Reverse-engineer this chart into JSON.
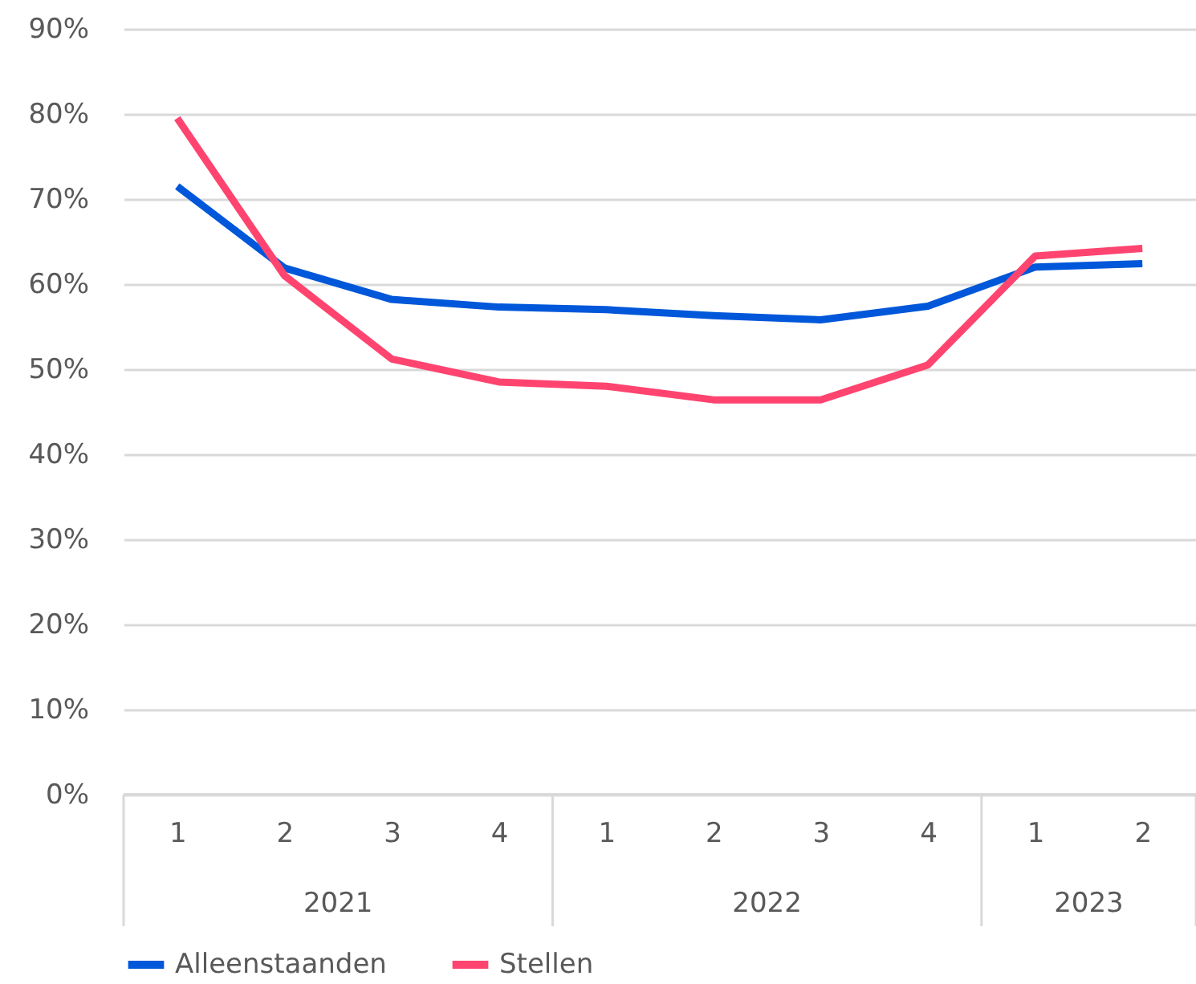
{
  "chart_data": {
    "type": "line",
    "categories": [
      "1",
      "2",
      "3",
      "4",
      "1",
      "2",
      "3",
      "4",
      "1",
      "2"
    ],
    "series": [
      {
        "name": "Alleenstaanden",
        "color": "#0057d9",
        "values": [
          71.5,
          61.9,
          58.2,
          57.3,
          57.0,
          56.3,
          55.8,
          57.4,
          62.0,
          62.4
        ]
      },
      {
        "name": "Stellen",
        "color": "#ff4470",
        "values": [
          79.5,
          61.0,
          51.2,
          48.5,
          48.0,
          46.4,
          46.4,
          50.5,
          63.3,
          64.2
        ]
      }
    ],
    "annotations": [
      "2021",
      "2022",
      "2023"
    ],
    "ylim": [
      0,
      90
    ],
    "yticks": [
      {
        "value": 0,
        "label": "0%"
      },
      {
        "value": 10,
        "label": "10%"
      },
      {
        "value": 20,
        "label": "20%"
      },
      {
        "value": 30,
        "label": "30%"
      },
      {
        "value": 40,
        "label": "40%"
      },
      {
        "value": 50,
        "label": "50%"
      },
      {
        "value": 60,
        "label": "60%"
      },
      {
        "value": 70,
        "label": "70%"
      },
      {
        "value": 80,
        "label": "80%"
      },
      {
        "value": 90,
        "label": "90%"
      }
    ],
    "grid": "y",
    "legend": "bottom",
    "marker": "none",
    "line_style": "solid"
  }
}
